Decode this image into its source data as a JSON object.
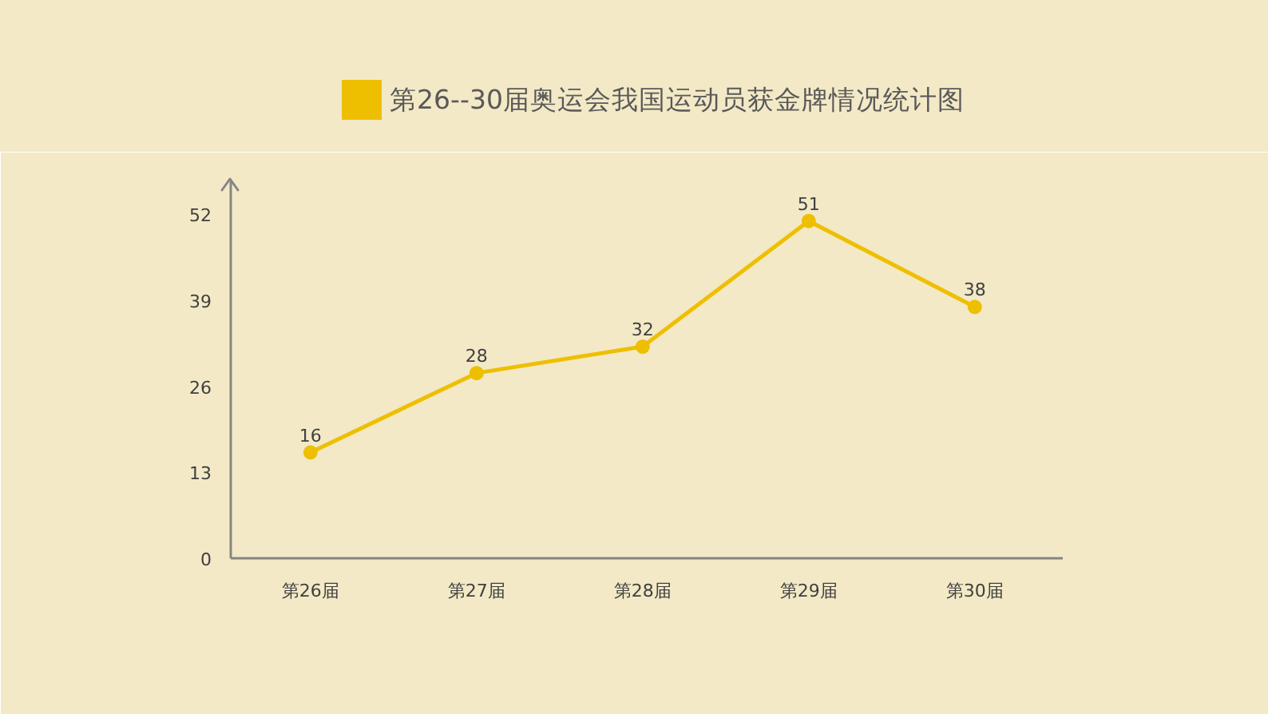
{
  "chart_data": {
    "type": "line",
    "title": "第26--30届奥运会我国运动员获金牌情况统计图",
    "categories": [
      "第26届",
      "第27届",
      "第28届",
      "第29届",
      "第30届"
    ],
    "series": [
      {
        "color": "#eebf00",
        "values": [
          16,
          28,
          32,
          51,
          38
        ]
      }
    ],
    "ylim": [
      0,
      57
    ],
    "yticks": [
      0,
      13,
      26,
      39,
      52
    ],
    "grid": false,
    "marker": "circle",
    "line_style": "solid",
    "data_labels": true
  }
}
